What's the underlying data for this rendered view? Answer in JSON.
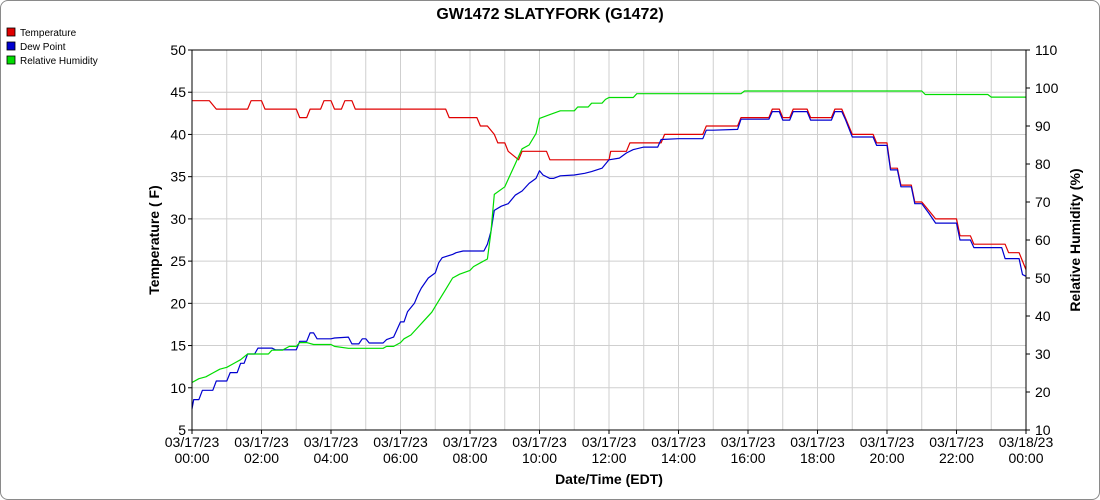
{
  "chart_data": {
    "type": "line",
    "title": "GW1472 SLATYFORK (G1472)",
    "xlabel": "Date/Time (EDT)",
    "ylabel": "Temperature ( F)",
    "y2label": "Relative Humidity (%)",
    "ylim": [
      5,
      50
    ],
    "y2lim": [
      10,
      110
    ],
    "yticks": [
      5,
      10,
      15,
      20,
      25,
      30,
      35,
      40,
      45,
      50
    ],
    "y2ticks": [
      10,
      20,
      30,
      40,
      50,
      60,
      70,
      80,
      90,
      100,
      110
    ],
    "xlim": [
      0,
      24
    ],
    "xtick_hours": [
      0,
      2,
      4,
      6,
      8,
      10,
      12,
      14,
      16,
      18,
      20,
      22,
      24
    ],
    "xtick_labels": [
      [
        "03/17/23",
        "00:00"
      ],
      [
        "03/17/23",
        "02:00"
      ],
      [
        "03/17/23",
        "04:00"
      ],
      [
        "03/17/23",
        "06:00"
      ],
      [
        "03/17/23",
        "08:00"
      ],
      [
        "03/17/23",
        "10:00"
      ],
      [
        "03/17/23",
        "12:00"
      ],
      [
        "03/17/23",
        "14:00"
      ],
      [
        "03/17/23",
        "16:00"
      ],
      [
        "03/17/23",
        "18:00"
      ],
      [
        "03/17/23",
        "20:00"
      ],
      [
        "03/17/23",
        "22:00"
      ],
      [
        "03/18/23",
        "00:00"
      ]
    ],
    "grid": true,
    "legend_position": "top-left",
    "series": [
      {
        "name": "Temperature",
        "color": "#e00000",
        "axis": "left",
        "points": [
          [
            0,
            44
          ],
          [
            0.5,
            44
          ],
          [
            0.6,
            43.5
          ],
          [
            0.7,
            43
          ],
          [
            1.6,
            43
          ],
          [
            1.7,
            44
          ],
          [
            2,
            44
          ],
          [
            2.1,
            43
          ],
          [
            3,
            43
          ],
          [
            3.1,
            42
          ],
          [
            3.3,
            42
          ],
          [
            3.4,
            43
          ],
          [
            3.7,
            43
          ],
          [
            3.8,
            44
          ],
          [
            4,
            44
          ],
          [
            4.1,
            43
          ],
          [
            4.3,
            43
          ],
          [
            4.4,
            44
          ],
          [
            4.6,
            44
          ],
          [
            4.7,
            43
          ],
          [
            5,
            43
          ],
          [
            6,
            43
          ],
          [
            7,
            43
          ],
          [
            7.3,
            43
          ],
          [
            7.4,
            42
          ],
          [
            8,
            42
          ],
          [
            8.2,
            42
          ],
          [
            8.3,
            41
          ],
          [
            8.5,
            41
          ],
          [
            8.7,
            40
          ],
          [
            8.8,
            39
          ],
          [
            9,
            39
          ],
          [
            9.1,
            38
          ],
          [
            9.4,
            37
          ],
          [
            9.5,
            38
          ],
          [
            10,
            38
          ],
          [
            10.2,
            38
          ],
          [
            10.3,
            37
          ],
          [
            11,
            37
          ],
          [
            11.5,
            37
          ],
          [
            12,
            37
          ],
          [
            12.05,
            38
          ],
          [
            12.5,
            38
          ],
          [
            12.6,
            39
          ],
          [
            13,
            39
          ],
          [
            13.5,
            39
          ],
          [
            13.6,
            40
          ],
          [
            14,
            40
          ],
          [
            14.7,
            40
          ],
          [
            14.8,
            41
          ],
          [
            15,
            41
          ],
          [
            15.7,
            41
          ],
          [
            15.8,
            42
          ],
          [
            16,
            42
          ],
          [
            16.6,
            42
          ],
          [
            16.7,
            43
          ],
          [
            16.9,
            43
          ],
          [
            17,
            42
          ],
          [
            17.2,
            42
          ],
          [
            17.3,
            43
          ],
          [
            17.7,
            43
          ],
          [
            17.8,
            42
          ],
          [
            18,
            42
          ],
          [
            18.4,
            42
          ],
          [
            18.5,
            43
          ],
          [
            18.7,
            43
          ],
          [
            18.8,
            42
          ],
          [
            19,
            40
          ],
          [
            19.6,
            40
          ],
          [
            19.7,
            39
          ],
          [
            20,
            39
          ],
          [
            20.1,
            36
          ],
          [
            20.3,
            36
          ],
          [
            20.4,
            34
          ],
          [
            20.7,
            34
          ],
          [
            20.8,
            32
          ],
          [
            21,
            32
          ],
          [
            21.2,
            31
          ],
          [
            21.4,
            30
          ],
          [
            21.6,
            30
          ],
          [
            21.7,
            30
          ],
          [
            22,
            30
          ],
          [
            22.1,
            28
          ],
          [
            22.4,
            28
          ],
          [
            22.5,
            27
          ],
          [
            23,
            27
          ],
          [
            23.1,
            27
          ],
          [
            23.4,
            27
          ],
          [
            23.5,
            26
          ],
          [
            23.8,
            26
          ],
          [
            23.9,
            25
          ],
          [
            24,
            24
          ]
        ]
      },
      {
        "name": "Dew Point",
        "color": "#0000d0",
        "axis": "left",
        "points": [
          [
            0,
            7.5
          ],
          [
            0.05,
            8.6
          ],
          [
            0.2,
            8.6
          ],
          [
            0.3,
            9.7
          ],
          [
            0.6,
            9.7
          ],
          [
            0.7,
            10.8
          ],
          [
            1,
            10.8
          ],
          [
            1.1,
            11.8
          ],
          [
            1.3,
            11.8
          ],
          [
            1.4,
            12.9
          ],
          [
            1.5,
            12.9
          ],
          [
            1.6,
            14
          ],
          [
            1.8,
            14
          ],
          [
            1.9,
            14.7
          ],
          [
            2.3,
            14.7
          ],
          [
            2.4,
            14.5
          ],
          [
            3,
            14.5
          ],
          [
            3.1,
            15.5
          ],
          [
            3.3,
            15.5
          ],
          [
            3.4,
            16.5
          ],
          [
            3.5,
            16.5
          ],
          [
            3.6,
            15.8
          ],
          [
            4,
            15.8
          ],
          [
            4.1,
            15.9
          ],
          [
            4.5,
            16
          ],
          [
            4.6,
            15.2
          ],
          [
            4.8,
            15.2
          ],
          [
            4.9,
            15.8
          ],
          [
            5,
            15.8
          ],
          [
            5.1,
            15.3
          ],
          [
            5.5,
            15.3
          ],
          [
            5.6,
            15.7
          ],
          [
            5.8,
            16
          ],
          [
            6,
            17.8
          ],
          [
            6.1,
            17.8
          ],
          [
            6.2,
            19
          ],
          [
            6.4,
            20
          ],
          [
            6.5,
            21
          ],
          [
            6.6,
            21.8
          ],
          [
            6.8,
            23
          ],
          [
            7,
            23.6
          ],
          [
            7.1,
            24.8
          ],
          [
            7.2,
            25.4
          ],
          [
            7.5,
            25.8
          ],
          [
            7.6,
            26
          ],
          [
            7.8,
            26.2
          ],
          [
            8.2,
            26.2
          ],
          [
            8.4,
            26.2
          ],
          [
            8.5,
            27
          ],
          [
            8.6,
            28.5
          ],
          [
            8.7,
            31
          ],
          [
            8.9,
            31.5
          ],
          [
            9.1,
            31.8
          ],
          [
            9.3,
            32.8
          ],
          [
            9.5,
            33.3
          ],
          [
            9.7,
            34.2
          ],
          [
            9.9,
            34.8
          ],
          [
            10,
            35.7
          ],
          [
            10.1,
            35.2
          ],
          [
            10.3,
            34.8
          ],
          [
            10.4,
            34.8
          ],
          [
            10.6,
            35.1
          ],
          [
            11,
            35.2
          ],
          [
            11.3,
            35.4
          ],
          [
            11.5,
            35.6
          ],
          [
            11.8,
            36
          ],
          [
            12,
            37
          ],
          [
            12.3,
            37.2
          ],
          [
            12.5,
            37.8
          ],
          [
            12.7,
            38.2
          ],
          [
            13,
            38.5
          ],
          [
            13.4,
            38.5
          ],
          [
            13.5,
            39.4
          ],
          [
            14,
            39.5
          ],
          [
            14.7,
            39.5
          ],
          [
            14.8,
            40.5
          ],
          [
            15,
            40.5
          ],
          [
            15.7,
            40.6
          ],
          [
            15.8,
            41.8
          ],
          [
            16,
            41.8
          ],
          [
            16.6,
            41.8
          ],
          [
            16.7,
            42.7
          ],
          [
            16.9,
            42.7
          ],
          [
            17,
            41.7
          ],
          [
            17.2,
            41.7
          ],
          [
            17.3,
            42.7
          ],
          [
            17.7,
            42.7
          ],
          [
            17.8,
            41.7
          ],
          [
            18,
            41.7
          ],
          [
            18.4,
            41.7
          ],
          [
            18.5,
            42.7
          ],
          [
            18.7,
            42.7
          ],
          [
            18.8,
            41.8
          ],
          [
            19,
            39.7
          ],
          [
            19.6,
            39.7
          ],
          [
            19.7,
            38.7
          ],
          [
            20,
            38.7
          ],
          [
            20.1,
            35.8
          ],
          [
            20.3,
            35.8
          ],
          [
            20.4,
            33.8
          ],
          [
            20.7,
            33.8
          ],
          [
            20.8,
            31.8
          ],
          [
            21,
            31.8
          ],
          [
            21.2,
            30.7
          ],
          [
            21.4,
            29.5
          ],
          [
            21.7,
            29.5
          ],
          [
            22,
            29.5
          ],
          [
            22.1,
            27.5
          ],
          [
            22.4,
            27.5
          ],
          [
            22.5,
            26.6
          ],
          [
            23,
            26.6
          ],
          [
            23.3,
            26.6
          ],
          [
            23.4,
            25.3
          ],
          [
            23.8,
            25.3
          ],
          [
            23.9,
            23.4
          ],
          [
            24,
            23.2
          ]
        ]
      },
      {
        "name": "Relative Humidity",
        "color": "#00dd00",
        "axis": "right",
        "points": [
          [
            0,
            22.5
          ],
          [
            0.2,
            23.5
          ],
          [
            0.4,
            24
          ],
          [
            0.6,
            25
          ],
          [
            0.8,
            26
          ],
          [
            1,
            26.5
          ],
          [
            1.2,
            27.5
          ],
          [
            1.4,
            28.5
          ],
          [
            1.6,
            30
          ],
          [
            2.2,
            30
          ],
          [
            2.3,
            31
          ],
          [
            2.6,
            31
          ],
          [
            2.8,
            32
          ],
          [
            3,
            32
          ],
          [
            3.1,
            33
          ],
          [
            3.3,
            33
          ],
          [
            3.5,
            32.5
          ],
          [
            4,
            32.5
          ],
          [
            4.1,
            32
          ],
          [
            4.5,
            31.5
          ],
          [
            5,
            31.5
          ],
          [
            5.5,
            31.5
          ],
          [
            5.6,
            32
          ],
          [
            5.8,
            32
          ],
          [
            6,
            33
          ],
          [
            6.1,
            34
          ],
          [
            6.3,
            35
          ],
          [
            6.5,
            37
          ],
          [
            6.7,
            39
          ],
          [
            6.9,
            41
          ],
          [
            7.1,
            44
          ],
          [
            7.3,
            47
          ],
          [
            7.5,
            50
          ],
          [
            7.7,
            51
          ],
          [
            8,
            52
          ],
          [
            8.1,
            53
          ],
          [
            8.3,
            54
          ],
          [
            8.5,
            55
          ],
          [
            8.6,
            62
          ],
          [
            8.7,
            72
          ],
          [
            9,
            74
          ],
          [
            9.1,
            76
          ],
          [
            9.3,
            80
          ],
          [
            9.4,
            82
          ],
          [
            9.5,
            84
          ],
          [
            9.7,
            85
          ],
          [
            9.9,
            88
          ],
          [
            10,
            92
          ],
          [
            10.3,
            93
          ],
          [
            10.6,
            94
          ],
          [
            11,
            94
          ],
          [
            11.1,
            95
          ],
          [
            11.4,
            95
          ],
          [
            11.5,
            96
          ],
          [
            11.8,
            96
          ],
          [
            11.9,
            97
          ],
          [
            12,
            97.5
          ],
          [
            12.7,
            97.5
          ],
          [
            12.8,
            98.5
          ],
          [
            13,
            98.5
          ],
          [
            14,
            98.5
          ],
          [
            15,
            98.5
          ],
          [
            15.8,
            98.5
          ],
          [
            15.9,
            99.2
          ],
          [
            16,
            99.2
          ],
          [
            18,
            99.2
          ],
          [
            19,
            99.2
          ],
          [
            20,
            99.2
          ],
          [
            21,
            99.2
          ],
          [
            21.1,
            98.3
          ],
          [
            22,
            98.3
          ],
          [
            22.5,
            98.3
          ],
          [
            22.9,
            98.3
          ],
          [
            23,
            97.6
          ],
          [
            24,
            97.6
          ]
        ]
      }
    ]
  }
}
